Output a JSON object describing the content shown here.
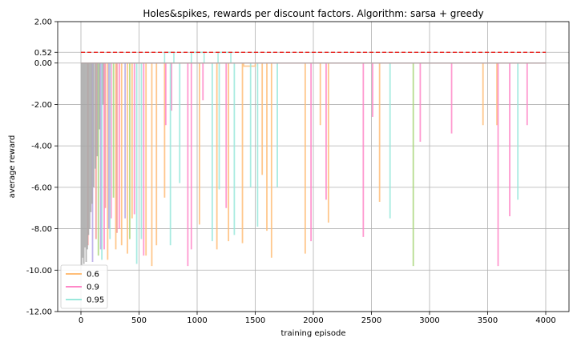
{
  "chart_data": {
    "type": "line",
    "title": "Holes&spikes, rewards per discount factors. Algorithm: sarsa + greedy",
    "xlabel": "training episode",
    "ylabel": "average reward",
    "xlim": [
      -200,
      4200
    ],
    "ylim": [
      -12,
      2
    ],
    "x_ticks": [
      0,
      500,
      1000,
      1500,
      2000,
      2500,
      3000,
      3500,
      4000
    ],
    "x_tick_labels": [
      "0",
      "500",
      "1000",
      "1500",
      "2000",
      "2500",
      "3000",
      "3500",
      "4000"
    ],
    "y_ticks": [
      -12,
      -10,
      -8,
      -6,
      -4,
      -2,
      0,
      0.52,
      2
    ],
    "y_tick_labels": [
      "-12.00",
      "-10.00",
      "-8.00",
      "-6.00",
      "-4.00",
      "-2.00",
      "0.00",
      "0.52",
      "2.00"
    ],
    "grid": true,
    "legend_position": "lower-left",
    "reference_line": {
      "y": 0.52,
      "x": [
        0,
        4000
      ],
      "color": "#e8231f",
      "style": "dashed"
    },
    "episodes": 4000,
    "baseline": 0.0,
    "series": [
      {
        "name": "0.6",
        "color": "#ffbe78",
        "spikes": [
          [
            230,
            -9.5
          ],
          [
            300,
            -9.0
          ],
          [
            350,
            -8.8
          ],
          [
            400,
            -9.2
          ],
          [
            440,
            -7.5
          ],
          [
            560,
            -9.3
          ],
          [
            610,
            -9.8
          ],
          [
            650,
            -8.8
          ],
          [
            720,
            -6.5
          ],
          [
            1020,
            -7.8
          ],
          [
            1170,
            -9.0
          ],
          [
            1270,
            -8.6
          ],
          [
            1390,
            -8.7
          ],
          [
            1560,
            -5.4
          ],
          [
            1600,
            -8.1
          ],
          [
            1640,
            -9.4
          ],
          [
            1930,
            -9.2
          ],
          [
            2060,
            -3.0
          ],
          [
            2130,
            -7.7
          ],
          [
            2570,
            -6.7
          ],
          [
            3460,
            -3.0
          ],
          [
            3580,
            -3.0
          ]
        ],
        "plateaus": [
          [
            1400,
            1500,
            -0.15
          ]
        ]
      },
      {
        "name": "0.9",
        "color": "#ff88c8",
        "spikes": [
          [
            200,
            -9.0
          ],
          [
            260,
            -7.5
          ],
          [
            330,
            -8.0
          ],
          [
            460,
            -7.3
          ],
          [
            540,
            -9.3
          ],
          [
            730,
            -3.0
          ],
          [
            780,
            -2.3
          ],
          [
            920,
            -9.8
          ],
          [
            950,
            -9.0
          ],
          [
            1050,
            -1.8
          ],
          [
            1250,
            -7.0
          ],
          [
            1980,
            -8.6
          ],
          [
            2110,
            -6.6
          ],
          [
            2430,
            -8.4
          ],
          [
            2510,
            -2.6
          ],
          [
            2920,
            -3.8
          ],
          [
            3190,
            -3.4
          ],
          [
            3590,
            -9.8
          ],
          [
            3690,
            -7.4
          ],
          [
            3840,
            -3.0
          ]
        ],
        "plateaus": []
      },
      {
        "name": "0.95",
        "color": "#9ae8dc",
        "spikes": [
          [
            180,
            -9.5
          ],
          [
            250,
            -8.5
          ],
          [
            480,
            -9.7
          ],
          [
            520,
            -8.5
          ],
          [
            770,
            -8.8
          ],
          [
            850,
            -5.8
          ],
          [
            1130,
            -8.6
          ],
          [
            1190,
            -6.1
          ],
          [
            1320,
            -8.3
          ],
          [
            1460,
            -6.0
          ],
          [
            1520,
            -7.9
          ],
          [
            1690,
            -6.0
          ],
          [
            2660,
            -7.5
          ],
          [
            3760,
            -6.6
          ]
        ],
        "plateaus": [
          [
            720,
            800,
            0.52
          ],
          [
            950,
            1060,
            0.52
          ],
          [
            1180,
            1290,
            0.52
          ]
        ]
      },
      {
        "name": "",
        "color": "#aad87c",
        "spikes": [
          [
            150,
            -9.3
          ],
          [
            280,
            -6.5
          ],
          [
            420,
            -8.5
          ],
          [
            2860,
            -9.8
          ]
        ],
        "plateaus": []
      },
      {
        "name": "",
        "color": "#b7a8e8",
        "spikes": [
          [
            100,
            -9.6
          ],
          [
            170,
            -9.0
          ],
          [
            240,
            -8.0
          ],
          [
            380,
            -7.5
          ]
        ],
        "plateaus": []
      },
      {
        "name": "",
        "color": "#f59a96",
        "spikes": [
          [
            60,
            -8.8
          ],
          [
            130,
            -8.5
          ],
          [
            210,
            -7.0
          ],
          [
            310,
            -8.2
          ]
        ],
        "plateaus": []
      },
      {
        "name": "",
        "color": "#a8a8a8",
        "spikes": [
          [
            5,
            -9.8
          ],
          [
            15,
            -9.4
          ],
          [
            25,
            -9.7
          ],
          [
            35,
            -8.9
          ],
          [
            45,
            -9.6
          ],
          [
            55,
            -9.0
          ],
          [
            65,
            -8.3
          ],
          [
            75,
            -8.0
          ],
          [
            85,
            -7.2
          ],
          [
            95,
            -6.8
          ],
          [
            110,
            -6.0
          ],
          [
            125,
            -5.1
          ],
          [
            140,
            -4.5
          ],
          [
            160,
            -3.2
          ],
          [
            190,
            -2.0
          ]
        ],
        "plateaus": []
      }
    ]
  }
}
